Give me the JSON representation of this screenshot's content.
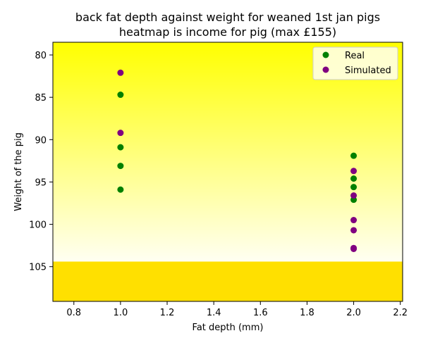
{
  "chart_data": {
    "type": "scatter",
    "title_line1": "back fat depth against weight for weaned 1st jan pigs",
    "title_line2": "heatmap is income for pig (max £155)",
    "xlabel": "Fat depth (mm)",
    "ylabel": "Weight of the pig",
    "xlim": [
      0.71,
      2.21
    ],
    "ylim": [
      109.1,
      78.5
    ],
    "y_inverted": true,
    "xticks": [
      0.8,
      1.0,
      1.2,
      1.4,
      1.6,
      1.8,
      2.0,
      2.2
    ],
    "xtick_labels": [
      "0.8",
      "1.0",
      "1.2",
      "1.4",
      "1.6",
      "1.8",
      "2.0",
      "2.2"
    ],
    "yticks": [
      80,
      85,
      90,
      95,
      100,
      105
    ],
    "ytick_labels": [
      "80",
      "85",
      "90",
      "95",
      "100",
      "105"
    ],
    "grid": false,
    "legend_position": "top-right",
    "background_heatmap": {
      "gradient_from_weight": 78.5,
      "gradient_to_weight": 104.4,
      "gradient_top_color": "#ffff00",
      "gradient_bottom_color": "#fffff2",
      "band_from_weight": 104.4,
      "band_color": "#ffe000"
    },
    "series": [
      {
        "name": "Real",
        "color": "#008000",
        "points": [
          {
            "x": 1.0,
            "y": 84.7
          },
          {
            "x": 1.0,
            "y": 90.9
          },
          {
            "x": 1.0,
            "y": 93.1
          },
          {
            "x": 1.0,
            "y": 95.9
          },
          {
            "x": 2.0,
            "y": 91.9
          },
          {
            "x": 2.0,
            "y": 94.6
          },
          {
            "x": 2.0,
            "y": 95.6
          },
          {
            "x": 2.0,
            "y": 97.1
          }
        ]
      },
      {
        "name": "Simulated",
        "color": "#800080",
        "points": [
          {
            "x": 1.0,
            "y": 82.1
          },
          {
            "x": 1.0,
            "y": 89.2
          },
          {
            "x": 2.0,
            "y": 93.7
          },
          {
            "x": 2.0,
            "y": 96.6
          },
          {
            "x": 2.0,
            "y": 99.5
          },
          {
            "x": 2.0,
            "y": 100.7
          },
          {
            "x": 2.0,
            "y": 102.8
          },
          {
            "x": 2.0,
            "y": 102.9
          }
        ]
      }
    ]
  }
}
